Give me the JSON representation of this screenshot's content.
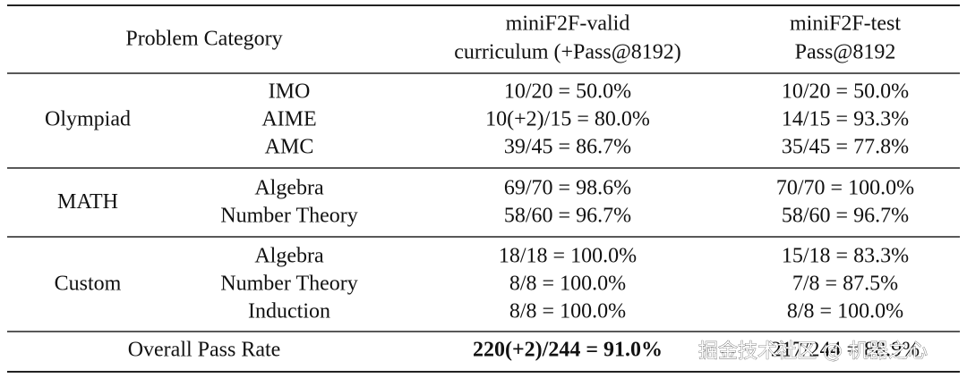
{
  "table": {
    "header": {
      "category": "Problem Category",
      "valid": [
        "miniF2F-valid",
        "curriculum (+Pass@8192)"
      ],
      "test": [
        "miniF2F-test",
        "Pass@8192"
      ]
    },
    "groups": [
      {
        "name": "Olympiad",
        "rows": [
          {
            "category": "IMO",
            "valid": "10/20 = 50.0%",
            "test": "10/20 = 50.0%"
          },
          {
            "category": "AIME",
            "valid": "10(+2)/15 = 80.0%",
            "test": "14/15 = 93.3%"
          },
          {
            "category": "AMC",
            "valid": "39/45 = 86.7%",
            "test": "35/45 = 77.8%"
          }
        ]
      },
      {
        "name": "MATH",
        "rows": [
          {
            "category": "Algebra",
            "valid": "69/70 = 98.6%",
            "test": "70/70 = 100.0%"
          },
          {
            "category": "Number Theory",
            "valid": "58/60 = 96.7%",
            "test": "58/60 = 96.7%"
          }
        ]
      },
      {
        "name": "Custom",
        "rows": [
          {
            "category": "Algebra",
            "valid": "18/18 = 100.0%",
            "test": "15/18 = 83.3%"
          },
          {
            "category": "Number Theory",
            "valid": "8/8 = 100.0%",
            "test": "7/8 = 87.5%"
          },
          {
            "category": "Induction",
            "valid": "8/8 = 100.0%",
            "test": "8/8 = 100.0%"
          }
        ]
      }
    ],
    "overall": {
      "label": "Overall Pass Rate",
      "valid": "220(+2)/244 = 91.0%",
      "test": "217/244 = 88.9%"
    }
  },
  "watermark": "掘金技术社区 @ 机器之心"
}
